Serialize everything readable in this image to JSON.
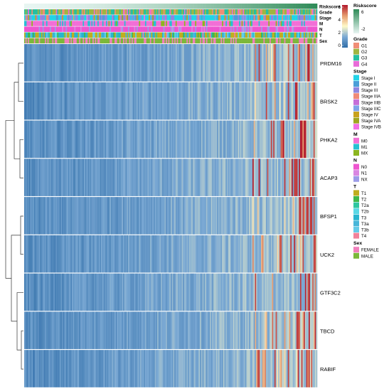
{
  "chart_data": {
    "type": "heatmap",
    "title": "",
    "rows": [
      "PRDM16",
      "BRSK2",
      "PHKA2",
      "ACAP3",
      "BFSP1",
      "UCK2",
      "GTF3C2",
      "TBCD",
      "RABIF"
    ],
    "annotation_tracks": [
      "Riskscore",
      "Grade",
      "Stage",
      "M",
      "N",
      "T",
      "Sex"
    ],
    "color_scale": {
      "ticks": [
        "6",
        "4",
        "2",
        "0"
      ],
      "colors": [
        "#b2182b",
        "#e59a6e",
        "#fffac8",
        "#7ba9d4",
        "#2f6da8"
      ]
    },
    "legends": [
      {
        "title": "Riskscore",
        "continuous": true,
        "labels": [
          "6",
          "-2"
        ],
        "colors": [
          "#2e8b57",
          "#e8f5f2"
        ]
      },
      {
        "title": "Grade",
        "labels": [
          "G1",
          "G2",
          "G3",
          "G4"
        ],
        "colors": [
          "#f08d76",
          "#9fb540",
          "#25bfa0",
          "#e86cd8"
        ]
      },
      {
        "title": "Stage",
        "labels": [
          "Stage I",
          "Stage II",
          "Stage III",
          "Stage IIIA",
          "Stage IIIB",
          "Stage IIIC",
          "Stage IV",
          "Stage IVA",
          "Stage IVB"
        ],
        "colors": [
          "#22d3e6",
          "#4a9fd8",
          "#8f86e0",
          "#f08a77",
          "#c66ed8",
          "#7fa4e8",
          "#c8a21e",
          "#9fa620",
          "#f26fe6"
        ]
      },
      {
        "title": "M",
        "labels": [
          "M0",
          "M1",
          "MX"
        ],
        "colors": [
          "#f26fd6",
          "#27c0d2",
          "#8cb620"
        ]
      },
      {
        "title": "N",
        "labels": [
          "N0",
          "N1",
          "NX"
        ],
        "colors": [
          "#ee55cf",
          "#d986e2",
          "#9c9ce8"
        ]
      },
      {
        "title": "T",
        "labels": [
          "T1",
          "T2",
          "T2a",
          "T2b",
          "T3",
          "T3a",
          "T3b",
          "T4"
        ],
        "colors": [
          "#bfae1f",
          "#3fb84a",
          "#2ec7a0",
          "#5ad8e5",
          "#28b5cf",
          "#47b6d9",
          "#65cbe8",
          "#f0829a"
        ]
      },
      {
        "title": "Sex",
        "labels": [
          "FEMALE",
          "MALE"
        ],
        "colors": [
          "#f17fbc",
          "#7cb83a"
        ]
      }
    ]
  }
}
